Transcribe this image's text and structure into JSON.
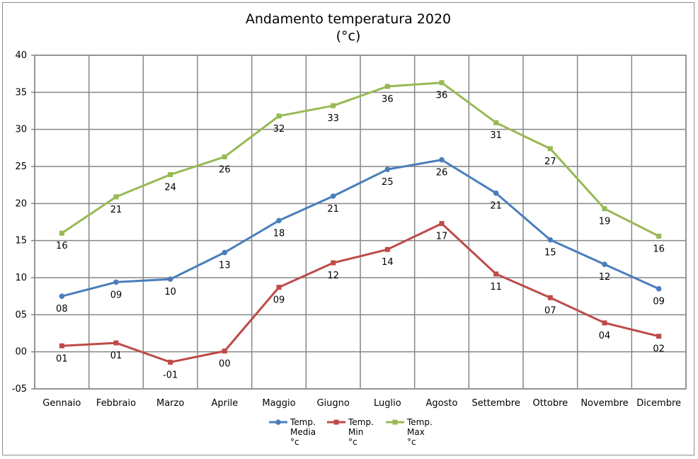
{
  "chart_data": {
    "type": "line",
    "title": "Andamento temperatura 2020",
    "subtitle": "(°c)",
    "xlabel": "",
    "ylabel": "",
    "ylim": [
      -5,
      40
    ],
    "yticks": [
      "-05",
      "00",
      "05",
      "10",
      "15",
      "20",
      "25",
      "30",
      "35",
      "40"
    ],
    "ytick_values": [
      -5,
      0,
      5,
      10,
      15,
      20,
      25,
      30,
      35,
      40
    ],
    "grid": true,
    "legend_position": "bottom",
    "categories": [
      "Gennaio",
      "Febbraio",
      "Marzo",
      "Aprile",
      "Maggio",
      "Giugno",
      "Luglio",
      "Agosto",
      "Settembre",
      "Ottobre",
      "Novembre",
      "Dicembre"
    ],
    "series": [
      {
        "name": "Temp. Media °c",
        "legend_lines": [
          "Temp.",
          "Media",
          "°c"
        ],
        "color": "#4a7ebb",
        "marker": "circle",
        "values": [
          7.5,
          9.4,
          9.8,
          13.4,
          17.7,
          21.0,
          24.6,
          25.9,
          21.4,
          15.1,
          11.8,
          8.5
        ],
        "labels": [
          "08",
          "09",
          "10",
          "13",
          "18",
          "21",
          "25",
          "26",
          "21",
          "15",
          "12",
          "09"
        ]
      },
      {
        "name": "Temp. Min °c",
        "legend_lines": [
          "Temp.",
          "Min",
          "°c"
        ],
        "color": "#be4b48",
        "marker": "square",
        "values": [
          0.8,
          1.2,
          -1.4,
          0.1,
          8.7,
          12.0,
          13.8,
          17.3,
          10.5,
          7.3,
          3.9,
          2.1
        ],
        "labels": [
          "01",
          "01",
          "-01",
          "00",
          "09",
          "12",
          "14",
          "17",
          "11",
          "07",
          "04",
          "02"
        ]
      },
      {
        "name": "Temp. Max °c",
        "legend_lines": [
          "Temp.",
          "Max",
          "°c"
        ],
        "color": "#98b954",
        "marker": "square",
        "values": [
          16.0,
          20.9,
          23.9,
          26.3,
          31.8,
          33.2,
          35.8,
          36.3,
          30.9,
          27.4,
          19.3,
          15.6
        ],
        "labels": [
          "16",
          "21",
          "24",
          "26",
          "32",
          "33",
          "36",
          "36",
          "31",
          "27",
          "19",
          "16"
        ]
      }
    ]
  }
}
